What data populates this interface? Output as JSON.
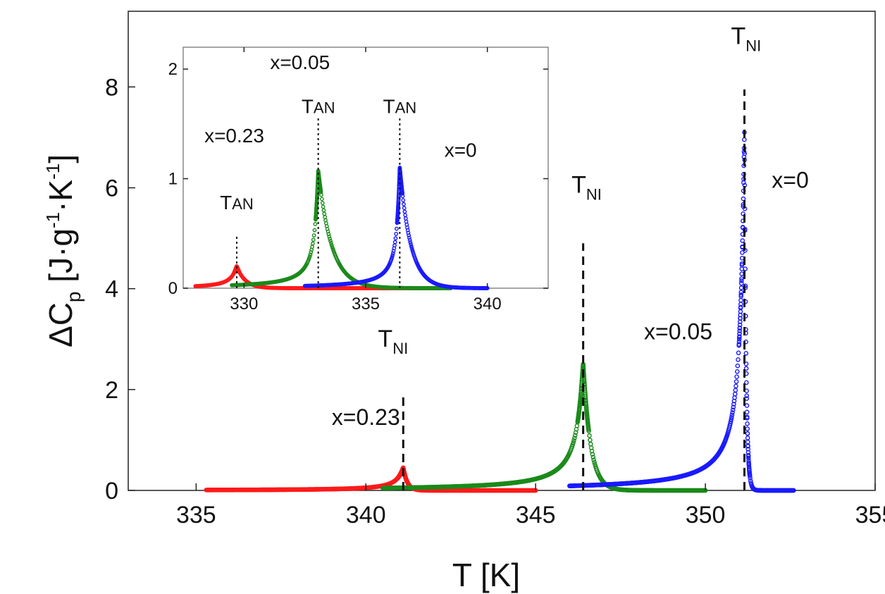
{
  "chart_data": [
    {
      "id": "main",
      "type": "scatter",
      "title": "",
      "xlabel": "T [K]",
      "ylabel": "ΔC_p [J·g⁻¹·K⁻¹]",
      "ylabel_parts": {
        "delta": "ΔC",
        "sub_p": "p",
        "open": " [J·g",
        "sup1": "-1",
        "mid": "·K",
        "sup2": "-1",
        "close": "]"
      },
      "xlim": [
        333,
        355
      ],
      "ylim": [
        0,
        9.5
      ],
      "xticks": [
        335,
        340,
        345,
        350,
        355
      ],
      "yticks": [
        0,
        2,
        4,
        6,
        8
      ],
      "series": [
        {
          "name": "x=0.23",
          "color": "#ff1a1a",
          "start": 335.3,
          "end": 345.0,
          "peak_x": 341.1,
          "peak_y": 0.45,
          "base": 0.0,
          "gl": 0.9,
          "gr": 0.12
        },
        {
          "name": "x=0.05",
          "color": "#1a8a1a",
          "start": 340.5,
          "end": 350.0,
          "peak_x": 346.4,
          "peak_y": 2.5,
          "base": 0.0,
          "gl": 0.9,
          "gr": 0.22
        },
        {
          "name": "x=0",
          "color": "#1a1aff",
          "start": 346.0,
          "end": 352.6,
          "peak_x": 351.15,
          "peak_y": 7.1,
          "base": 0.0,
          "gl": 0.55,
          "gr": 0.05
        }
      ],
      "vlines": [
        {
          "x": 341.1,
          "y_top": 1.95,
          "label": "T",
          "sub": "NI",
          "label_y": 2.85,
          "label_x": 340.8
        },
        {
          "x": 346.4,
          "y_top": 4.9,
          "label": "T",
          "sub": "NI",
          "label_y": 5.9,
          "label_x": 346.5
        },
        {
          "x": 351.15,
          "y_top": 7.95,
          "label": "T",
          "sub": "NI",
          "label_y": 8.85,
          "label_x": 351.2
        }
      ],
      "annotations": [
        {
          "text": "x=0.23",
          "x": 340.0,
          "y": 1.3
        },
        {
          "text": "x=0.05",
          "x": 349.2,
          "y": 3.0
        },
        {
          "text": "x=0",
          "x": 352.5,
          "y": 6.0
        }
      ]
    },
    {
      "id": "inset",
      "type": "scatter",
      "xlim": [
        327.5,
        342.5
      ],
      "ylim": [
        0,
        2.2
      ],
      "xticks": [
        330,
        335,
        340
      ],
      "yticks": [
        0,
        1,
        2
      ],
      "series": [
        {
          "name": "x=0.23",
          "color": "#ff1a1a",
          "start": 328.0,
          "end": 338.0,
          "peak_x": 329.7,
          "peak_y": 0.2,
          "base": 0.0,
          "gl": 1.1,
          "gr": 0.35
        },
        {
          "name": "x=0.05",
          "color": "#1a8a1a",
          "start": 329.5,
          "end": 338.5,
          "peak_x": 333.05,
          "peak_y": 1.07,
          "base": 0.0,
          "gl": 0.7,
          "gr": 0.55
        },
        {
          "name": "x=0",
          "color": "#1a1aff",
          "start": 332.5,
          "end": 340.0,
          "peak_x": 336.4,
          "peak_y": 1.1,
          "base": 0.0,
          "gl": 0.6,
          "gr": 0.45
        }
      ],
      "vlines": [
        {
          "x": 329.7,
          "y_top": 0.47,
          "label": "T",
          "sub": "AN",
          "label_y": 0.72,
          "label_x": 329.7
        },
        {
          "x": 333.05,
          "y_top": 1.55,
          "label": "T",
          "sub": "AN",
          "label_y": 1.6,
          "label_x": 333.05
        },
        {
          "x": 336.4,
          "y_top": 1.55,
          "label": "T",
          "sub": "AN",
          "label_y": 1.6,
          "label_x": 336.4
        }
      ],
      "annotations": [
        {
          "text": "x=0.23",
          "x": 329.6,
          "y": 1.33
        },
        {
          "text": "x=0.05",
          "x": 332.3,
          "y": 2.0
        },
        {
          "text": "x=0",
          "x": 338.9,
          "y": 1.2
        }
      ]
    }
  ]
}
